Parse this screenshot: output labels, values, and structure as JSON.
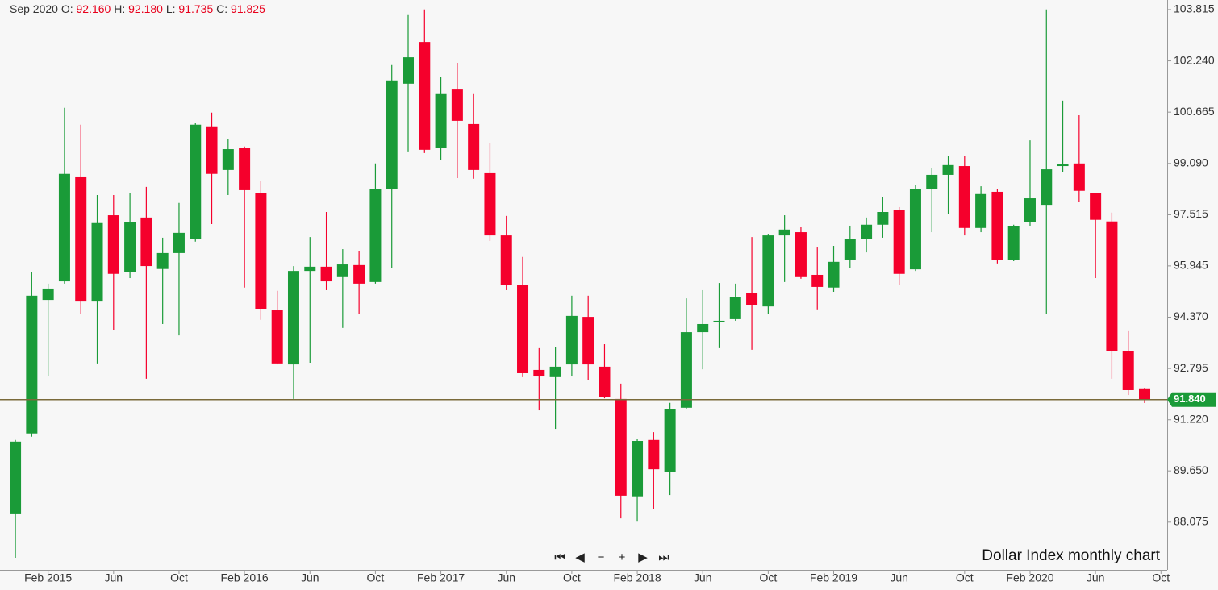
{
  "chart_data": {
    "type": "candlestick",
    "header": {
      "period": "Sep 2020",
      "items": [
        {
          "label": "O:",
          "value": "92.160"
        },
        {
          "label": "H:",
          "value": "92.180"
        },
        {
          "label": "L:",
          "value": "91.735"
        },
        {
          "label": "C:",
          "value": "91.825"
        }
      ]
    },
    "annotation": "Dollar Index monthly chart",
    "up_color": "#1a9b38",
    "down_color": "#f5002c",
    "price_line": {
      "value": 91.84,
      "label": "91.840",
      "color": "#1a9b38",
      "line_color": "#7a6a3a"
    },
    "xlim": [
      -0.94,
      70.38
    ],
    "xticks": [
      {
        "value": 2,
        "label": "Feb 2015"
      },
      {
        "value": 6,
        "label": "Jun"
      },
      {
        "value": 10,
        "label": "Oct"
      },
      {
        "value": 14,
        "label": "Feb 2016"
      },
      {
        "value": 18,
        "label": "Jun"
      },
      {
        "value": 22,
        "label": "Oct"
      },
      {
        "value": 26,
        "label": "Feb 2017"
      },
      {
        "value": 30,
        "label": "Jun"
      },
      {
        "value": 34,
        "label": "Oct"
      },
      {
        "value": 38,
        "label": "Feb 2018"
      },
      {
        "value": 42,
        "label": "Jun"
      },
      {
        "value": 46,
        "label": "Oct"
      },
      {
        "value": 50,
        "label": "Feb 2019"
      },
      {
        "value": 54,
        "label": "Jun"
      },
      {
        "value": 58,
        "label": "Oct"
      },
      {
        "value": 62,
        "label": "Feb 2020"
      },
      {
        "value": 66,
        "label": "Jun"
      },
      {
        "value": 70,
        "label": "Oct"
      }
    ],
    "ylim": [
      86.61,
      104.11
    ],
    "yticks": [
      88.075,
      {
        "value": 89.65,
        "label": "89.650"
      },
      {
        "value": 91.22,
        "label": "91.220"
      },
      92.795,
      {
        "value": 94.37,
        "label": "94.370"
      },
      95.945,
      97.515,
      {
        "value": 99.09,
        "label": "99.090"
      },
      100.665,
      {
        "value": 102.24,
        "label": "102.240"
      },
      103.815
    ],
    "open": [
      88.32,
      90.8,
      94.9,
      95.47,
      98.69,
      94.85,
      97.5,
      95.75,
      97.43,
      95.85,
      96.34,
      96.78,
      100.23,
      98.89,
      99.56,
      98.17,
      94.58,
      92.92,
      95.79,
      95.92,
      95.6,
      95.97,
      95.45,
      98.3,
      101.54,
      102.82,
      99.58,
      101.36,
      100.3,
      98.79,
      96.88,
      95.35,
      92.75,
      92.53,
      92.92,
      94.38,
      92.85,
      91.86,
      88.87,
      90.6,
      89.63,
      91.59,
      93.91,
      94.23,
      94.31,
      95.1,
      94.7,
      96.88,
      96.98,
      95.67,
      95.28,
      96.14,
      96.78,
      97.21,
      97.65,
      95.84,
      98.3,
      98.74,
      99.01,
      97.11,
      98.22,
      96.12,
      97.28,
      97.82,
      99.01,
      99.09,
      98.17,
      97.31,
      93.32,
      92.16
    ],
    "high": [
      90.6,
      95.75,
      95.4,
      100.8,
      100.28,
      98.12,
      98.12,
      98.17,
      98.37,
      96.81,
      97.88,
      100.33,
      100.65,
      99.85,
      99.61,
      98.54,
      95.18,
      95.94,
      96.83,
      97.6,
      96.46,
      96.41,
      99.09,
      102.11,
      103.67,
      103.82,
      101.74,
      102.18,
      101.22,
      99.73,
      97.48,
      96.22,
      93.42,
      93.45,
      95.03,
      95.03,
      93.54,
      92.33,
      90.62,
      90.84,
      91.74,
      94.95,
      95.2,
      95.42,
      95.4,
      96.83,
      96.93,
      97.5,
      97.13,
      96.51,
      96.56,
      97.18,
      97.43,
      98.05,
      97.75,
      98.44,
      98.96,
      99.33,
      99.31,
      98.39,
      98.3,
      97.21,
      99.8,
      103.82,
      101.02,
      100.57,
      98.17,
      97.58,
      93.94,
      92.18
    ],
    "low": [
      86.98,
      90.7,
      92.55,
      95.4,
      94.46,
      92.95,
      93.96,
      95.57,
      92.48,
      94.16,
      93.81,
      96.69,
      97.23,
      98.12,
      95.28,
      94.29,
      92.92,
      91.86,
      92.97,
      95.2,
      94.04,
      94.46,
      95.4,
      95.87,
      99.46,
      99.41,
      99.19,
      98.64,
      98.62,
      96.71,
      95.2,
      92.53,
      91.51,
      90.94,
      92.55,
      92.43,
      91.88,
      88.19,
      88.09,
      88.47,
      88.91,
      91.54,
      92.77,
      93.42,
      94.26,
      93.37,
      94.48,
      95.45,
      95.55,
      94.61,
      95.15,
      95.87,
      96.36,
      96.81,
      95.35,
      95.79,
      96.98,
      97.55,
      96.88,
      96.98,
      96.02,
      96.09,
      97.18,
      94.48,
      98.82,
      97.92,
      95.57,
      92.48,
      91.98,
      91.735
    ],
    "close": [
      90.55,
      95.03,
      95.25,
      98.77,
      94.85,
      97.26,
      95.7,
      97.28,
      95.94,
      96.34,
      96.96,
      100.28,
      98.77,
      99.53,
      98.27,
      94.63,
      92.95,
      95.79,
      95.92,
      95.47,
      95.99,
      95.4,
      98.3,
      101.64,
      102.35,
      99.51,
      101.22,
      100.4,
      98.89,
      96.88,
      95.37,
      92.65,
      92.55,
      92.85,
      94.41,
      92.92,
      91.93,
      88.89,
      90.57,
      89.7,
      91.56,
      93.91,
      94.16,
      94.26,
      95.0,
      94.75,
      96.88,
      97.06,
      95.6,
      95.3,
      96.07,
      96.78,
      97.21,
      97.6,
      95.7,
      98.3,
      98.74,
      99.04,
      97.11,
      98.15,
      96.12,
      97.16,
      98.02,
      98.91,
      99.06,
      98.25,
      97.36,
      93.32,
      92.13,
      91.825
    ]
  }
}
